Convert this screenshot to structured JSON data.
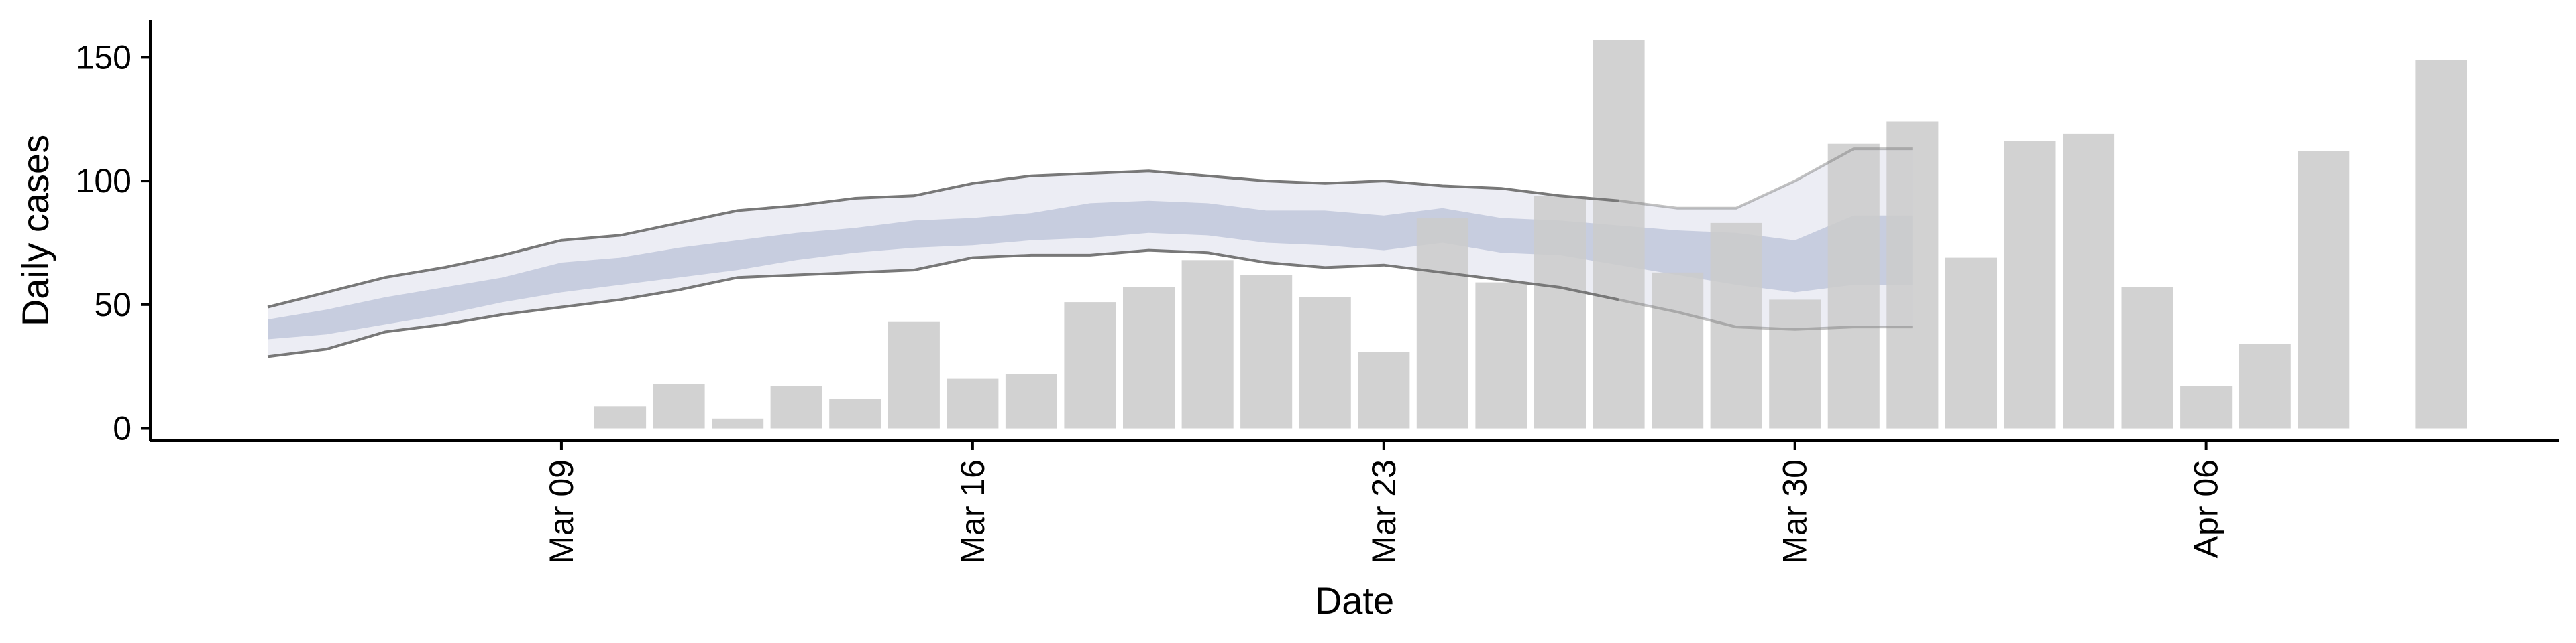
{
  "chart_data": {
    "type": "bar",
    "xlabel": "Date",
    "ylabel": "Daily cases",
    "ylim": [
      -5,
      165
    ],
    "y_ticks": [
      0,
      50,
      100,
      150
    ],
    "x_ticks": [
      {
        "date": "2020-03-09",
        "label": "Mar 09"
      },
      {
        "date": "2020-03-16",
        "label": "Mar 16"
      },
      {
        "date": "2020-03-23",
        "label": "Mar 23"
      },
      {
        "date": "2020-03-30",
        "label": "Mar 30"
      },
      {
        "date": "2020-04-06",
        "label": "Apr 06"
      }
    ],
    "xlim": [
      "2020-03-02",
      "2020-04-12"
    ],
    "grid": false,
    "legend": "none",
    "colors": {
      "bars": "#cccccc",
      "outer_band": "#b9bfd6",
      "inner_band": "#aab3cd",
      "band_lines": "#787878"
    },
    "bars": [
      {
        "date": "2020-03-10",
        "value": 9
      },
      {
        "date": "2020-03-11",
        "value": 18
      },
      {
        "date": "2020-03-12",
        "value": 4
      },
      {
        "date": "2020-03-13",
        "value": 17
      },
      {
        "date": "2020-03-14",
        "value": 12
      },
      {
        "date": "2020-03-15",
        "value": 43
      },
      {
        "date": "2020-03-16",
        "value": 20
      },
      {
        "date": "2020-03-17",
        "value": 22
      },
      {
        "date": "2020-03-18",
        "value": 51
      },
      {
        "date": "2020-03-19",
        "value": 57
      },
      {
        "date": "2020-03-20",
        "value": 68
      },
      {
        "date": "2020-03-21",
        "value": 62
      },
      {
        "date": "2020-03-22",
        "value": 53
      },
      {
        "date": "2020-03-23",
        "value": 31
      },
      {
        "date": "2020-03-24",
        "value": 85
      },
      {
        "date": "2020-03-25",
        "value": 59
      },
      {
        "date": "2020-03-26",
        "value": 94
      },
      {
        "date": "2020-03-27",
        "value": 157
      },
      {
        "date": "2020-03-28",
        "value": 63
      },
      {
        "date": "2020-03-29",
        "value": 83
      },
      {
        "date": "2020-03-30",
        "value": 52
      },
      {
        "date": "2020-03-31",
        "value": 115
      },
      {
        "date": "2020-04-01",
        "value": 124
      },
      {
        "date": "2020-04-02",
        "value": 69
      },
      {
        "date": "2020-04-03",
        "value": 116
      },
      {
        "date": "2020-04-04",
        "value": 119
      },
      {
        "date": "2020-04-05",
        "value": 57
      },
      {
        "date": "2020-04-06",
        "value": 17
      },
      {
        "date": "2020-04-07",
        "value": 34
      },
      {
        "date": "2020-04-08",
        "value": 112
      },
      {
        "date": "2020-04-09",
        "value": 0
      },
      {
        "date": "2020-04-10",
        "value": 149
      }
    ],
    "estimate_dates": [
      "2020-03-04",
      "2020-03-05",
      "2020-03-06",
      "2020-03-07",
      "2020-03-08",
      "2020-03-09",
      "2020-03-10",
      "2020-03-11",
      "2020-03-12",
      "2020-03-13",
      "2020-03-14",
      "2020-03-15",
      "2020-03-16",
      "2020-03-17",
      "2020-03-18",
      "2020-03-19",
      "2020-03-20",
      "2020-03-21",
      "2020-03-22",
      "2020-03-23",
      "2020-03-24",
      "2020-03-25",
      "2020-03-26",
      "2020-03-27",
      "2020-03-28",
      "2020-03-29",
      "2020-03-30",
      "2020-03-31",
      "2020-04-01"
    ],
    "outer_upper": [
      49,
      55,
      61,
      65,
      70,
      76,
      78,
      83,
      88,
      90,
      93,
      94,
      99,
      102,
      103,
      104,
      102,
      100,
      99,
      100,
      98,
      97,
      94,
      92,
      89,
      89,
      100,
      113,
      113
    ],
    "inner_upper": [
      44,
      48,
      53,
      57,
      61,
      67,
      69,
      73,
      76,
      79,
      81,
      84,
      85,
      87,
      91,
      92,
      91,
      88,
      88,
      86,
      89,
      85,
      84,
      82,
      80,
      79,
      76,
      86,
      86
    ],
    "inner_lower": [
      36,
      38,
      42,
      46,
      51,
      55,
      58,
      61,
      64,
      68,
      71,
      73,
      74,
      76,
      77,
      79,
      78,
      75,
      74,
      72,
      75,
      71,
      70,
      66,
      62,
      58,
      55,
      58,
      58
    ],
    "outer_lower": [
      29,
      32,
      39,
      42,
      46,
      49,
      52,
      56,
      61,
      62,
      63,
      64,
      69,
      70,
      70,
      72,
      71,
      67,
      65,
      66,
      63,
      60,
      57,
      52,
      47,
      41,
      40,
      41,
      41
    ],
    "projection_start": "2020-03-27"
  }
}
